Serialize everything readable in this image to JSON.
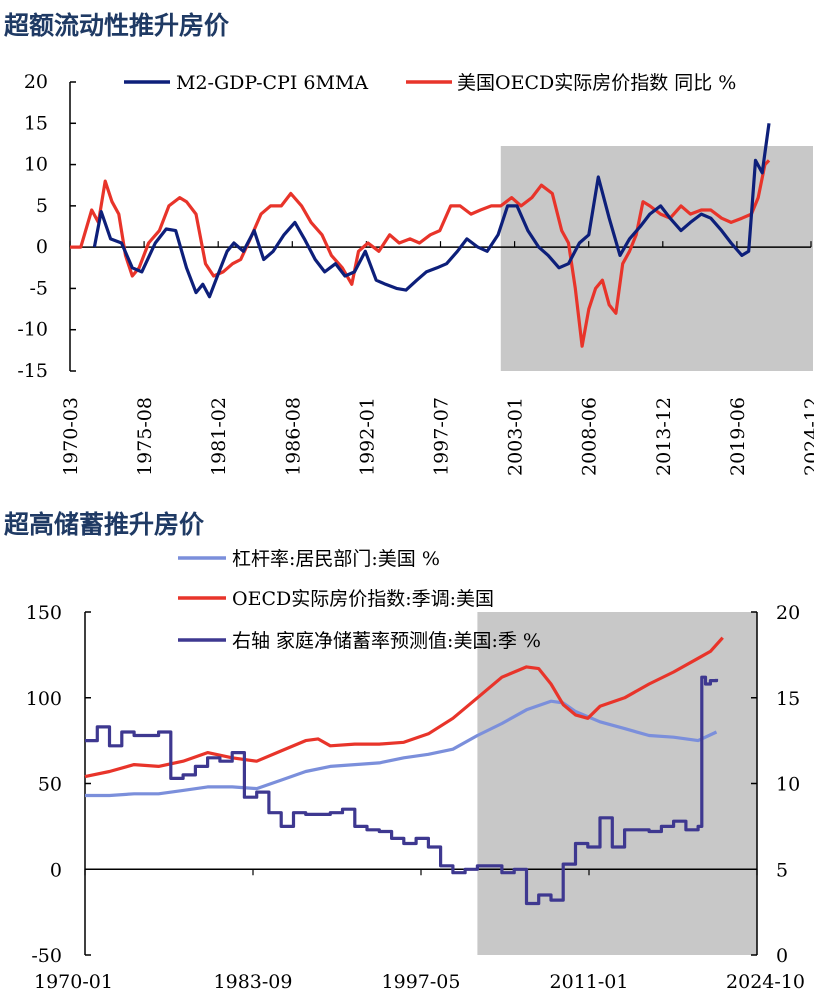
{
  "titles": {
    "chart1": "超额流动性推升房价",
    "chart2": "超高储蓄推升房价"
  },
  "colors": {
    "navy": "#0d1f7a",
    "red": "#e8342a",
    "lightblue": "#7b8fdb",
    "purple": "#3e3890",
    "shade": "#c8c8c8"
  },
  "chart_data": [
    {
      "type": "line",
      "title": "超额流动性推升房价",
      "ylim": [
        -15,
        20
      ],
      "yticks": [
        "20",
        "15",
        "10",
        "5",
        "0",
        "-5",
        "-10",
        "-15"
      ],
      "xticks": [
        "1970-03",
        "1975-08",
        "1981-02",
        "1986-08",
        "1992-01",
        "1997-07",
        "2003-01",
        "2008-06",
        "2013-12",
        "2019-06",
        "2024-12"
      ],
      "shaded_range": [
        2002.0,
        2024.9
      ],
      "legend_position": "top",
      "series": [
        {
          "name": "M2-GDP-CPI 6MMA",
          "color": "#0d1f7a",
          "x": [
            1972.0,
            1972.5,
            1973.2,
            1974.0,
            1974.8,
            1975.5,
            1976.5,
            1977.3,
            1978.0,
            1978.8,
            1979.5,
            1980.0,
            1980.5,
            1981.2,
            1981.8,
            1982.3,
            1983.0,
            1983.8,
            1984.5,
            1985.2,
            1986.0,
            1986.8,
            1987.5,
            1988.3,
            1989.0,
            1989.8,
            1990.5,
            1991.2,
            1992.0,
            1992.8,
            1993.5,
            1994.3,
            1995.0,
            1995.8,
            1996.5,
            1997.3,
            1998.0,
            1998.8,
            1999.5,
            2000.3,
            2001.0,
            2001.8,
            2002.5,
            2003.2,
            2004.0,
            2004.8,
            2005.5,
            2006.3,
            2007.0,
            2007.8,
            2008.5,
            2009.2,
            2010.0,
            2010.8,
            2011.5,
            2012.3,
            2013.0,
            2013.8,
            2014.5,
            2015.3,
            2016.0,
            2016.8,
            2017.5,
            2018.3,
            2019.0,
            2019.8,
            2020.3,
            2020.8,
            2021.3,
            2021.8
          ],
          "values": [
            0,
            4.3,
            1.0,
            0.5,
            -2.5,
            -3.0,
            0.5,
            2.2,
            2.0,
            -2.5,
            -5.5,
            -4.5,
            -6.0,
            -3.0,
            -0.5,
            0.5,
            -0.5,
            2.0,
            -1.5,
            -0.5,
            1.5,
            3.0,
            1.0,
            -1.5,
            -3.0,
            -2.0,
            -3.5,
            -3.0,
            -0.5,
            -4.0,
            -4.5,
            -5.0,
            -5.2,
            -4.0,
            -3.0,
            -2.5,
            -2.0,
            -0.5,
            1.0,
            0.0,
            -0.5,
            1.5,
            5.0,
            5.0,
            2.0,
            0.0,
            -1.0,
            -2.5,
            -2.0,
            0.5,
            1.5,
            8.5,
            3.5,
            -1.0,
            1.0,
            2.5,
            4.0,
            5.0,
            3.5,
            2.0,
            3.0,
            4.0,
            3.5,
            2.0,
            0.5,
            -1.0,
            -0.5,
            10.5,
            9.0,
            15.0
          ]
        },
        {
          "name": "美国OECD实际房价指数 同比 %",
          "color": "#e8342a",
          "x": [
            1970.2,
            1971.0,
            1971.8,
            1972.3,
            1972.8,
            1973.3,
            1973.8,
            1974.3,
            1974.8,
            1975.3,
            1976.0,
            1976.8,
            1977.5,
            1978.3,
            1978.8,
            1979.5,
            1980.2,
            1980.8,
            1981.5,
            1982.2,
            1982.8,
            1983.5,
            1984.3,
            1985.0,
            1985.8,
            1986.5,
            1987.3,
            1988.0,
            1988.8,
            1989.5,
            1990.3,
            1991.0,
            1991.5,
            1992.2,
            1993.0,
            1993.8,
            1994.5,
            1995.3,
            1996.0,
            1996.8,
            1997.5,
            1998.3,
            1999.0,
            1999.8,
            2000.5,
            2001.3,
            2002.0,
            2002.8,
            2003.5,
            2004.3,
            2005.0,
            2005.8,
            2006.5,
            2007.0,
            2007.5,
            2008.0,
            2008.5,
            2009.0,
            2009.5,
            2010.0,
            2010.5,
            2011.0,
            2011.5,
            2012.0,
            2012.5,
            2013.0,
            2013.8,
            2014.5,
            2015.3,
            2016.0,
            2016.8,
            2017.5,
            2018.3,
            2019.0,
            2019.8,
            2020.5,
            2021.0,
            2021.5,
            2021.8
          ],
          "values": [
            0,
            0,
            4.5,
            3.0,
            8.0,
            5.5,
            4.0,
            -1.0,
            -3.5,
            -2.5,
            0.5,
            2.0,
            5.0,
            6.0,
            5.5,
            4.0,
            -2.0,
            -3.5,
            -3.0,
            -2.0,
            -1.5,
            1.0,
            4.0,
            5.0,
            5.0,
            6.5,
            5.0,
            3.0,
            1.5,
            -1.0,
            -2.5,
            -4.5,
            -0.5,
            0.5,
            -0.5,
            1.5,
            0.5,
            1.0,
            0.5,
            1.5,
            2.0,
            5.0,
            5.0,
            4.0,
            4.5,
            5.0,
            5.0,
            6.0,
            5.0,
            6.0,
            7.5,
            6.5,
            2.0,
            0.5,
            -5.0,
            -12.0,
            -7.5,
            -5.0,
            -4.0,
            -7.0,
            -8.0,
            -2.0,
            -0.5,
            1.5,
            5.5,
            5.0,
            4.0,
            3.5,
            5.0,
            4.0,
            4.5,
            4.5,
            3.5,
            3.0,
            3.5,
            4.0,
            6.0,
            10.0,
            10.5
          ]
        }
      ]
    },
    {
      "type": "line",
      "title": "超高储蓄推升房价",
      "ylim": [
        -50,
        150
      ],
      "y2lim": [
        0,
        20
      ],
      "yticks": [
        "150",
        "100",
        "50",
        "0",
        "-50"
      ],
      "y2ticks": [
        "20",
        "15",
        "10",
        "5",
        "0"
      ],
      "xticks": [
        "1970-01",
        "1983-09",
        "1997-05",
        "2011-01",
        "2024-10"
      ],
      "shaded_range": [
        2002.0,
        2024.9
      ],
      "legend_position": "top",
      "series": [
        {
          "name": "杠杆率:居民部门:美国 %",
          "color": "#7b8fdb",
          "axis": "left",
          "x": [
            1970.0,
            1972.0,
            1974.0,
            1976.0,
            1978.0,
            1980.0,
            1982.0,
            1984.0,
            1986.0,
            1988.0,
            1990.0,
            1992.0,
            1994.0,
            1996.0,
            1998.0,
            2000.0,
            2002.0,
            2004.0,
            2006.0,
            2008.0,
            2009.0,
            2010.0,
            2012.0,
            2014.0,
            2016.0,
            2018.0,
            2020.0,
            2021.5
          ],
          "values": [
            43,
            43,
            44,
            44,
            46,
            48,
            48,
            47,
            52,
            57,
            60,
            61,
            62,
            65,
            67,
            70,
            78,
            85,
            93,
            98,
            97,
            92,
            86,
            82,
            78,
            77,
            75,
            80
          ]
        },
        {
          "name": "OECD实际房价指数:季调:美国",
          "color": "#e8342a",
          "axis": "left",
          "x": [
            1970.0,
            1972.0,
            1974.0,
            1976.0,
            1978.0,
            1980.0,
            1982.0,
            1984.0,
            1986.0,
            1988.0,
            1989.0,
            1990.0,
            1992.0,
            1994.0,
            1996.0,
            1998.0,
            2000.0,
            2002.0,
            2004.0,
            2006.0,
            2007.0,
            2008.0,
            2009.0,
            2010.0,
            2011.0,
            2012.0,
            2014.0,
            2016.0,
            2018.0,
            2020.0,
            2021.0,
            2022.0
          ],
          "values": [
            54,
            57,
            61,
            60,
            63,
            68,
            65,
            63,
            69,
            75,
            76,
            72,
            73,
            73,
            74,
            79,
            88,
            100,
            112,
            118,
            117,
            108,
            96,
            90,
            88,
            95,
            100,
            108,
            115,
            123,
            127,
            135
          ]
        },
        {
          "name": "右轴 家庭净储蓄率预测值:美国:季 %",
          "color": "#3e3890",
          "axis": "right",
          "x": [
            1970.0,
            1971.0,
            1972.0,
            1973.0,
            1974.0,
            1975.0,
            1976.0,
            1977.0,
            1978.0,
            1979.0,
            1980.0,
            1981.0,
            1982.0,
            1983.0,
            1984.0,
            1985.0,
            1986.0,
            1987.0,
            1988.0,
            1989.0,
            1990.0,
            1991.0,
            1992.0,
            1993.0,
            1994.0,
            1995.0,
            1996.0,
            1997.0,
            1998.0,
            1999.0,
            2000.0,
            2001.0,
            2002.0,
            2003.0,
            2004.0,
            2005.0,
            2006.0,
            2007.0,
            2008.0,
            2009.0,
            2010.0,
            2011.0,
            2012.0,
            2013.0,
            2014.0,
            2015.0,
            2016.0,
            2017.0,
            2018.0,
            2019.0,
            2020.0,
            2020.3,
            2020.6,
            2021.0,
            2021.5
          ],
          "values": [
            12.5,
            13.3,
            12.2,
            13.0,
            12.8,
            12.8,
            13.0,
            10.3,
            10.5,
            11.0,
            11.5,
            11.3,
            11.8,
            9.2,
            9.5,
            8.3,
            7.5,
            8.3,
            8.2,
            8.2,
            8.3,
            8.5,
            7.5,
            7.3,
            7.2,
            6.8,
            6.5,
            6.8,
            6.3,
            5.2,
            4.8,
            5.0,
            5.2,
            5.2,
            4.8,
            5.0,
            3.0,
            3.5,
            3.2,
            5.3,
            6.5,
            6.3,
            8.0,
            6.3,
            7.3,
            7.3,
            7.2,
            7.5,
            7.8,
            7.3,
            7.5,
            16.2,
            15.8,
            16.0,
            16.1
          ]
        }
      ]
    }
  ]
}
